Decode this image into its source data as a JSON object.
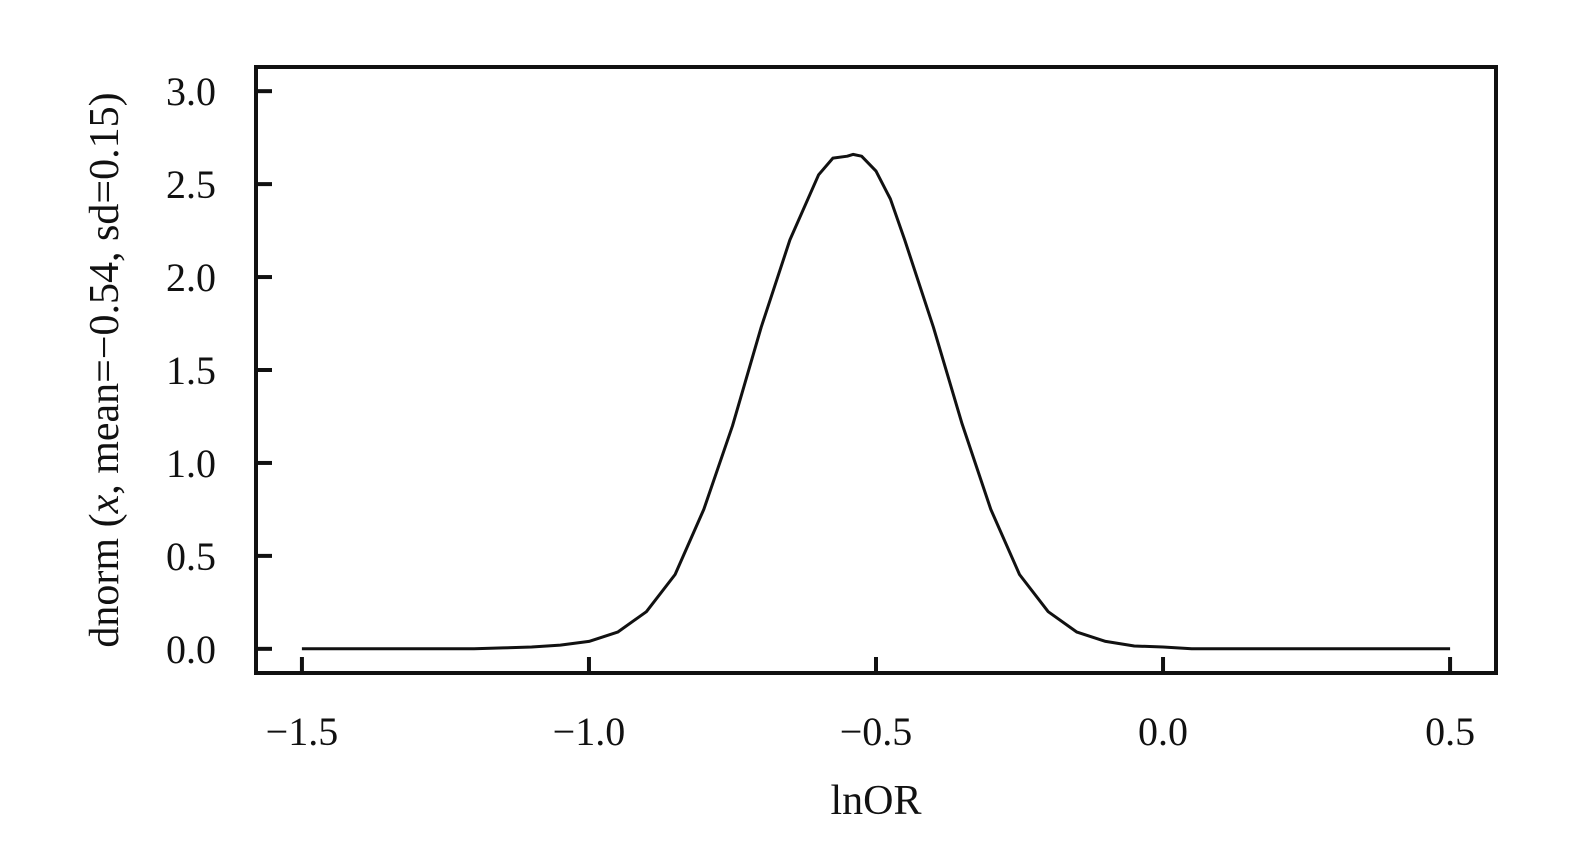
{
  "chart_data": {
    "type": "line",
    "title": "",
    "xlabel": "lnOR",
    "ylabel_parts": [
      "dnorm (",
      "x",
      ", mean=−0.54, sd=0.15)"
    ],
    "xlim": [
      -1.58,
      0.58
    ],
    "ylim": [
      -0.13,
      3.13
    ],
    "x_ticks": [
      -1.5,
      -1.0,
      -0.5,
      0.0,
      0.5
    ],
    "x_tick_labels": [
      "−1.5",
      "−1.0",
      "−0.5",
      "0.0",
      "0.5"
    ],
    "y_ticks": [
      0.0,
      0.5,
      1.0,
      1.5,
      2.0,
      2.5,
      3.0
    ],
    "y_tick_labels": [
      "0.0",
      "0.5",
      "1.0",
      "1.5",
      "2.0",
      "2.5",
      "3.0"
    ],
    "grid": false,
    "series": [
      {
        "x": [
          -1.5,
          -1.4,
          -1.3,
          -1.2,
          -1.15,
          -1.1,
          -1.05,
          -1.0,
          -0.95,
          -0.9,
          -0.85,
          -0.8,
          -0.75,
          -0.7,
          -0.65,
          -0.6,
          -0.575,
          -0.55,
          -0.54,
          -0.525,
          -0.5,
          -0.475,
          -0.45,
          -0.4,
          -0.35,
          -0.3,
          -0.25,
          -0.2,
          -0.15,
          -0.1,
          -0.05,
          0.0,
          0.05,
          0.1,
          0.2,
          0.3,
          0.4,
          0.5
        ],
        "y": [
          0.0,
          0.0,
          0.0,
          0.0,
          0.005,
          0.01,
          0.02,
          0.04,
          0.09,
          0.2,
          0.4,
          0.75,
          1.2,
          1.73,
          2.2,
          2.55,
          2.64,
          2.65,
          2.66,
          2.65,
          2.57,
          2.42,
          2.2,
          1.73,
          1.21,
          0.75,
          0.4,
          0.2,
          0.09,
          0.04,
          0.015,
          0.01,
          0.0,
          0.0,
          0.0,
          0.0,
          0.0,
          0.0
        ]
      }
    ]
  }
}
